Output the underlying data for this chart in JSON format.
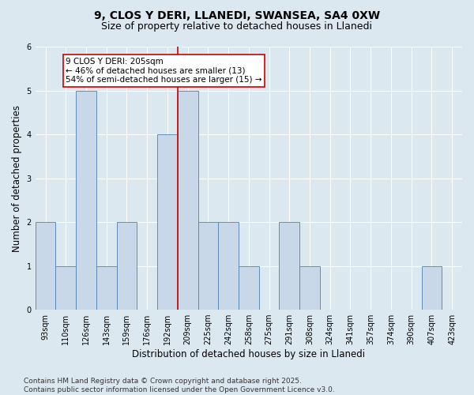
{
  "title_line1": "9, CLOS Y DERI, LLANEDI, SWANSEA, SA4 0XW",
  "title_line2": "Size of property relative to detached houses in Llanedi",
  "xlabel": "Distribution of detached houses by size in Llanedi",
  "ylabel": "Number of detached properties",
  "bins": [
    "93sqm",
    "110sqm",
    "126sqm",
    "143sqm",
    "159sqm",
    "176sqm",
    "192sqm",
    "209sqm",
    "225sqm",
    "242sqm",
    "258sqm",
    "275sqm",
    "291sqm",
    "308sqm",
    "324sqm",
    "341sqm",
    "357sqm",
    "374sqm",
    "390sqm",
    "407sqm",
    "423sqm"
  ],
  "values": [
    2,
    1,
    5,
    1,
    2,
    0,
    4,
    5,
    2,
    2,
    1,
    0,
    2,
    1,
    0,
    0,
    0,
    0,
    0,
    1,
    0
  ],
  "bar_color": "#c8d8e8",
  "bar_edge_color": "#5080b0",
  "vline_color": "#cc0000",
  "annotation_text": "9 CLOS Y DERI: 205sqm\n← 46% of detached houses are smaller (13)\n54% of semi-detached houses are larger (15) →",
  "annotation_box_facecolor": "white",
  "annotation_box_edgecolor": "#cc0000",
  "ylim": [
    0,
    6
  ],
  "yticks": [
    0,
    1,
    2,
    3,
    4,
    5,
    6
  ],
  "figure_facecolor": "#dce8f0",
  "axes_facecolor": "#dce8f0",
  "grid_color": "white",
  "title_fontsize": 10,
  "subtitle_fontsize": 9,
  "axis_label_fontsize": 8.5,
  "tick_fontsize": 7,
  "annot_fontsize": 7.5,
  "footer_fontsize": 6.5,
  "footer_text": "Contains HM Land Registry data © Crown copyright and database right 2025.\nContains public sector information licensed under the Open Government Licence v3.0."
}
